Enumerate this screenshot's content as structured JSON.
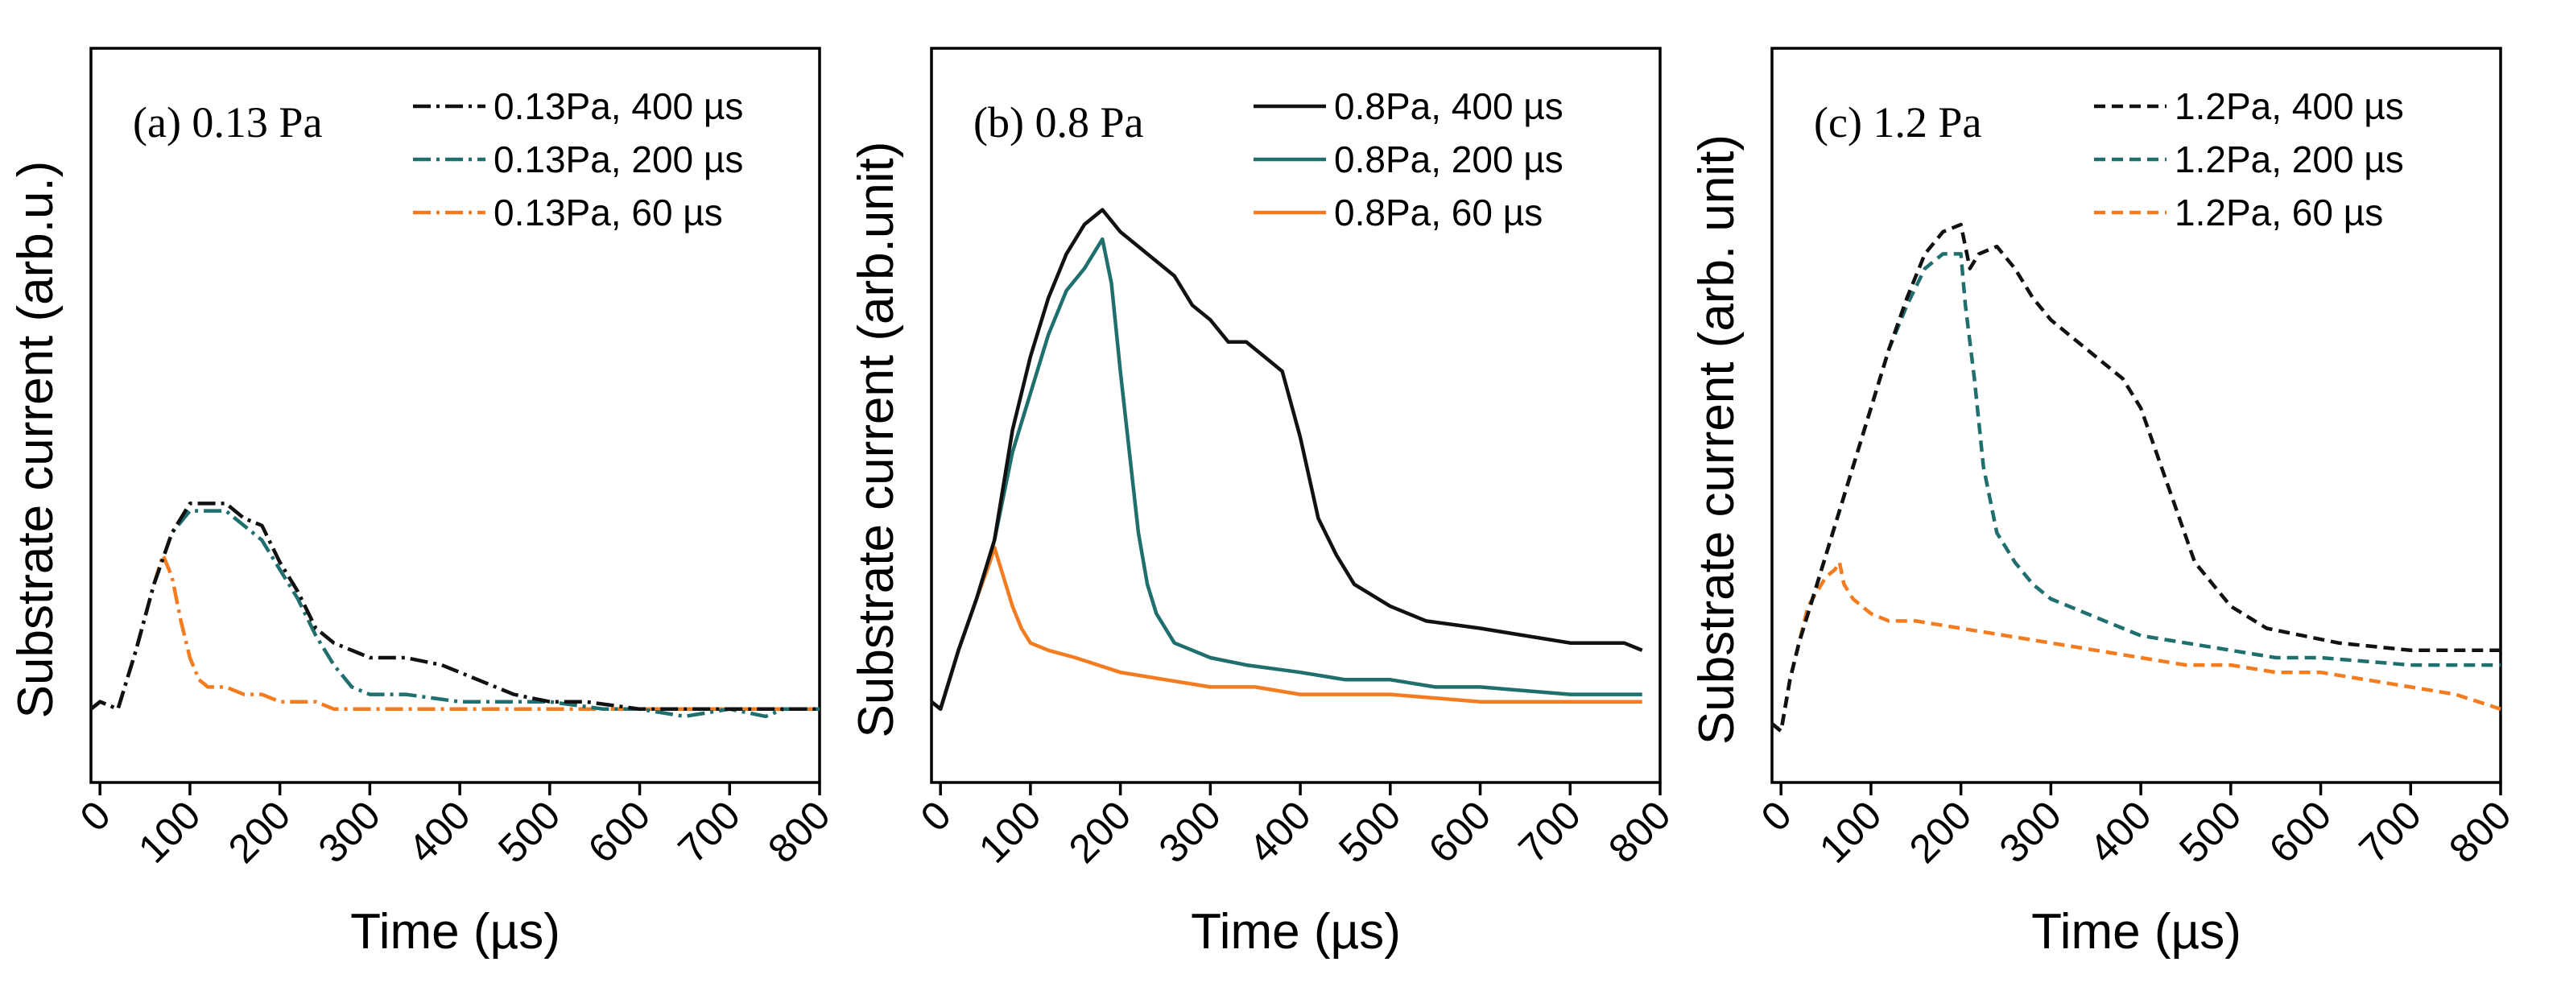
{
  "colors": {
    "black": "#111111",
    "teal": "#1f6f6f",
    "orange": "#f47c20"
  },
  "chart_data": [
    {
      "type": "line",
      "title": "(a) 0.13 Pa",
      "xlabel": "Time (µs)",
      "ylabel": "Substrate current (arb.u.)",
      "xlim": [
        -10,
        800
      ],
      "ylim": [
        0,
        100
      ],
      "xticks": [
        "0",
        "100",
        "200",
        "300",
        "400",
        "500",
        "600",
        "700",
        "800"
      ],
      "line_style": "dashdot",
      "series": [
        {
          "name": "0.13Pa, 400 µs",
          "color": "black",
          "x": [
            -10,
            0,
            20,
            40,
            60,
            80,
            100,
            120,
            140,
            160,
            180,
            200,
            220,
            240,
            260,
            280,
            300,
            340,
            380,
            400,
            420,
            440,
            460,
            500,
            540,
            600,
            650,
            700,
            800
          ],
          "y": [
            10,
            11,
            10,
            18,
            27,
            34,
            38,
            38,
            38,
            36,
            35,
            30,
            26,
            21,
            19,
            18,
            17,
            17,
            16,
            15,
            14,
            13,
            12,
            11,
            11,
            10,
            10,
            10,
            10
          ]
        },
        {
          "name": "0.13Pa, 200 µs",
          "color": "teal",
          "x": [
            -10,
            0,
            20,
            40,
            60,
            80,
            100,
            120,
            140,
            160,
            180,
            200,
            220,
            240,
            260,
            280,
            300,
            340,
            400,
            450,
            500,
            560,
            600,
            650,
            700,
            740,
            760,
            800
          ],
          "y": [
            10,
            11,
            10,
            18,
            27,
            34,
            37,
            37,
            37,
            35,
            33,
            29,
            25,
            20,
            16,
            13,
            12,
            12,
            11,
            11,
            11,
            10,
            10,
            9,
            10,
            9,
            10,
            10
          ]
        },
        {
          "name": "0.13Pa, 60 µs",
          "color": "orange",
          "x": [
            -10,
            0,
            20,
            40,
            60,
            70,
            80,
            90,
            100,
            110,
            120,
            140,
            160,
            180,
            200,
            220,
            240,
            260,
            300,
            400,
            500,
            600,
            700,
            800
          ],
          "y": [
            10,
            11,
            10,
            18,
            27,
            31,
            28,
            22,
            17,
            14,
            13,
            13,
            12,
            12,
            11,
            11,
            11,
            10,
            10,
            10,
            10,
            10,
            10,
            10
          ]
        }
      ]
    },
    {
      "type": "line",
      "title": "(b) 0.8 Pa",
      "xlabel": "Time (µs)",
      "ylabel": "Substrate current (arb.unit)",
      "xlim": [
        -10,
        800
      ],
      "ylim": [
        0,
        100
      ],
      "xticks": [
        "0",
        "100",
        "200",
        "300",
        "400",
        "500",
        "600",
        "700",
        "800"
      ],
      "line_style": "solid",
      "series": [
        {
          "name": "0.8Pa, 400 µs",
          "color": "black",
          "x": [
            -10,
            0,
            20,
            40,
            60,
            80,
            100,
            120,
            140,
            160,
            180,
            200,
            220,
            240,
            260,
            280,
            300,
            320,
            340,
            360,
            380,
            400,
            420,
            440,
            460,
            500,
            540,
            600,
            650,
            700,
            760,
            780
          ],
          "y": [
            11,
            10,
            18,
            25,
            33,
            48,
            58,
            66,
            72,
            76,
            78,
            75,
            73,
            71,
            69,
            65,
            63,
            60,
            60,
            58,
            56,
            47,
            36,
            31,
            27,
            24,
            22,
            21,
            20,
            19,
            19,
            18
          ]
        },
        {
          "name": "0.8Pa, 200 µs",
          "color": "teal",
          "x": [
            -10,
            0,
            20,
            40,
            60,
            80,
            100,
            120,
            140,
            160,
            180,
            190,
            200,
            210,
            220,
            230,
            240,
            260,
            280,
            300,
            340,
            400,
            450,
            500,
            550,
            600,
            700,
            780
          ],
          "y": [
            11,
            10,
            18,
            25,
            33,
            45,
            53,
            61,
            67,
            70,
            74,
            68,
            56,
            45,
            34,
            27,
            23,
            19,
            18,
            17,
            16,
            15,
            14,
            14,
            13,
            13,
            12,
            12
          ]
        },
        {
          "name": "0.8Pa, 60 µs",
          "color": "orange",
          "x": [
            -10,
            0,
            20,
            40,
            55,
            60,
            70,
            80,
            90,
            100,
            120,
            150,
            200,
            250,
            300,
            350,
            400,
            450,
            500,
            600,
            700,
            780
          ],
          "y": [
            11,
            10,
            18,
            25,
            30,
            32,
            28,
            24,
            21,
            19,
            18,
            17,
            15,
            14,
            13,
            13,
            12,
            12,
            12,
            11,
            11,
            11
          ]
        }
      ]
    },
    {
      "type": "line",
      "title": "(c) 1.2 Pa",
      "xlabel": "Time (µs)",
      "ylabel": "Substrate current (arb. unit)",
      "xlim": [
        -10,
        800
      ],
      "ylim": [
        0,
        100
      ],
      "xticks": [
        "0",
        "100",
        "200",
        "300",
        "400",
        "500",
        "600",
        "700",
        "800"
      ],
      "line_style": "dashed",
      "series": [
        {
          "name": "1.2Pa, 400 µs",
          "color": "black",
          "x": [
            -10,
            0,
            10,
            20,
            40,
            60,
            80,
            100,
            120,
            140,
            160,
            180,
            200,
            210,
            220,
            240,
            260,
            280,
            300,
            320,
            340,
            360,
            380,
            400,
            420,
            440,
            460,
            500,
            540,
            580,
            620,
            700,
            800
          ],
          "y": [
            8,
            7,
            14,
            19,
            27,
            35,
            43,
            51,
            59,
            66,
            72,
            75,
            76,
            70,
            72,
            73,
            70,
            66,
            63,
            61,
            59,
            57,
            55,
            51,
            44,
            37,
            30,
            24,
            21,
            20,
            19,
            18,
            18
          ]
        },
        {
          "name": "1.2Pa, 200 µs",
          "color": "teal",
          "x": [
            -10,
            0,
            10,
            20,
            40,
            60,
            80,
            100,
            120,
            140,
            160,
            180,
            200,
            205,
            215,
            225,
            240,
            260,
            280,
            300,
            320,
            340,
            360,
            380,
            400,
            450,
            500,
            550,
            600,
            700,
            800
          ],
          "y": [
            8,
            7,
            14,
            19,
            27,
            35,
            43,
            51,
            59,
            65,
            70,
            72,
            72,
            65,
            55,
            43,
            34,
            30,
            27,
            25,
            24,
            23,
            22,
            21,
            20,
            19,
            18,
            17,
            17,
            16,
            16
          ]
        },
        {
          "name": "1.2Pa, 60 µs",
          "color": "orange",
          "x": [
            -10,
            0,
            10,
            20,
            30,
            40,
            50,
            60,
            65,
            70,
            80,
            90,
            100,
            120,
            150,
            200,
            250,
            300,
            350,
            400,
            450,
            500,
            550,
            600,
            650,
            700,
            750,
            800
          ],
          "y": [
            8,
            7,
            14,
            19,
            24,
            26,
            28,
            29,
            30,
            27,
            25,
            24,
            23,
            22,
            22,
            21,
            20,
            19,
            18,
            17,
            16,
            16,
            15,
            15,
            14,
            13,
            12,
            10
          ]
        }
      ]
    }
  ]
}
